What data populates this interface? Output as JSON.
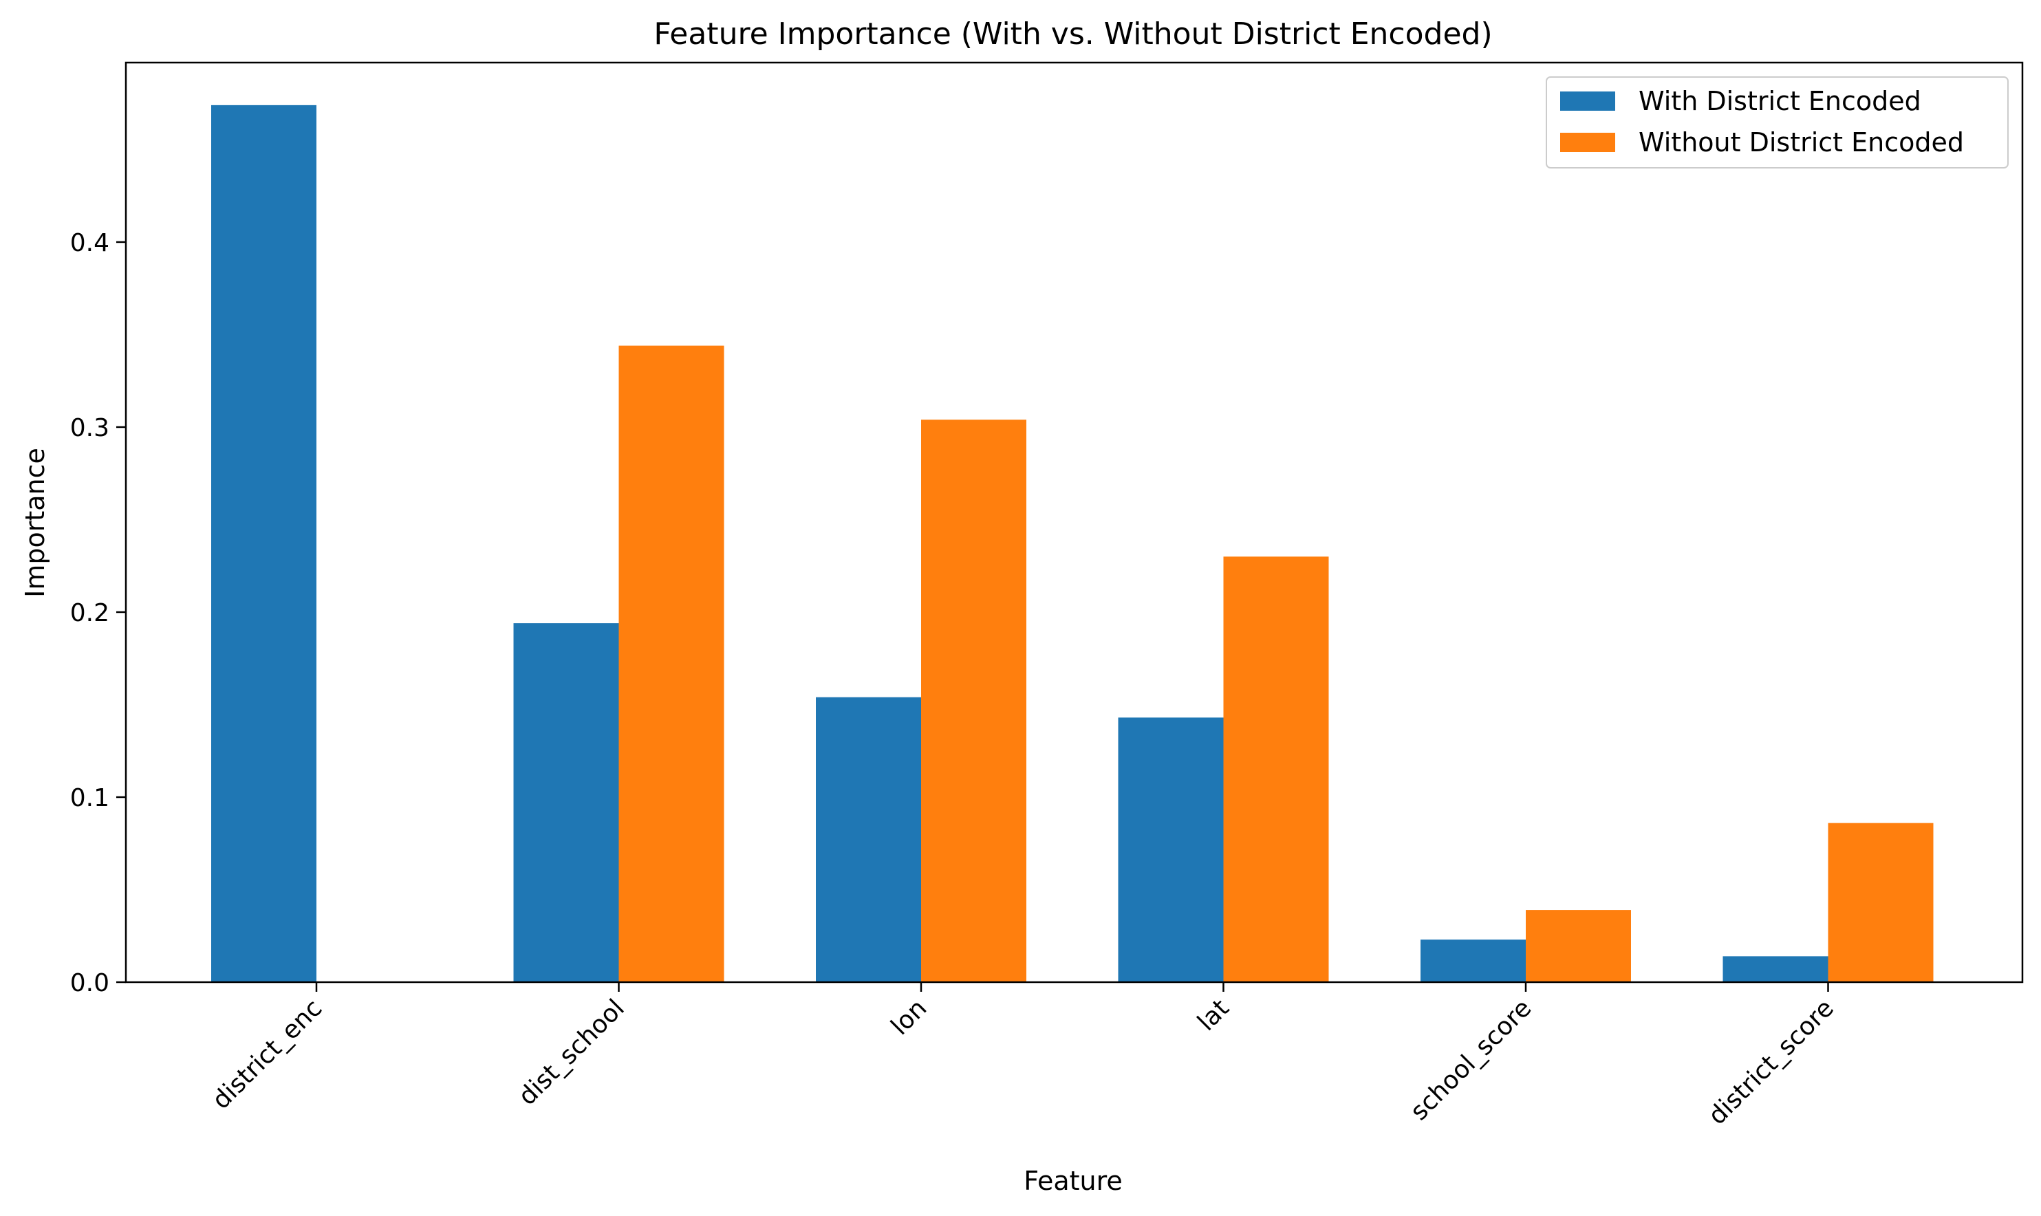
{
  "chart_data": {
    "type": "bar",
    "title": "Feature Importance (With vs. Without District Encoded)",
    "xlabel": "Feature",
    "ylabel": "Importance",
    "categories": [
      "district_enc",
      "dist_school",
      "lon",
      "lat",
      "school_score",
      "district_score"
    ],
    "series": [
      {
        "name": "With District Encoded",
        "color": "#1f77b4",
        "values": [
          0.474,
          0.194,
          0.154,
          0.143,
          0.023,
          0.014
        ]
      },
      {
        "name": "Without District Encoded",
        "color": "#ff7f0e",
        "values": [
          0.0,
          0.344,
          0.304,
          0.23,
          0.039,
          0.086
        ]
      }
    ],
    "ylim": [
      0,
      0.497
    ],
    "yticks": [
      0.0,
      0.1,
      0.2,
      0.3,
      0.4
    ],
    "ytick_labels": [
      "0.0",
      "0.1",
      "0.2",
      "0.3",
      "0.4"
    ],
    "grid": false,
    "legend": "top-right"
  }
}
